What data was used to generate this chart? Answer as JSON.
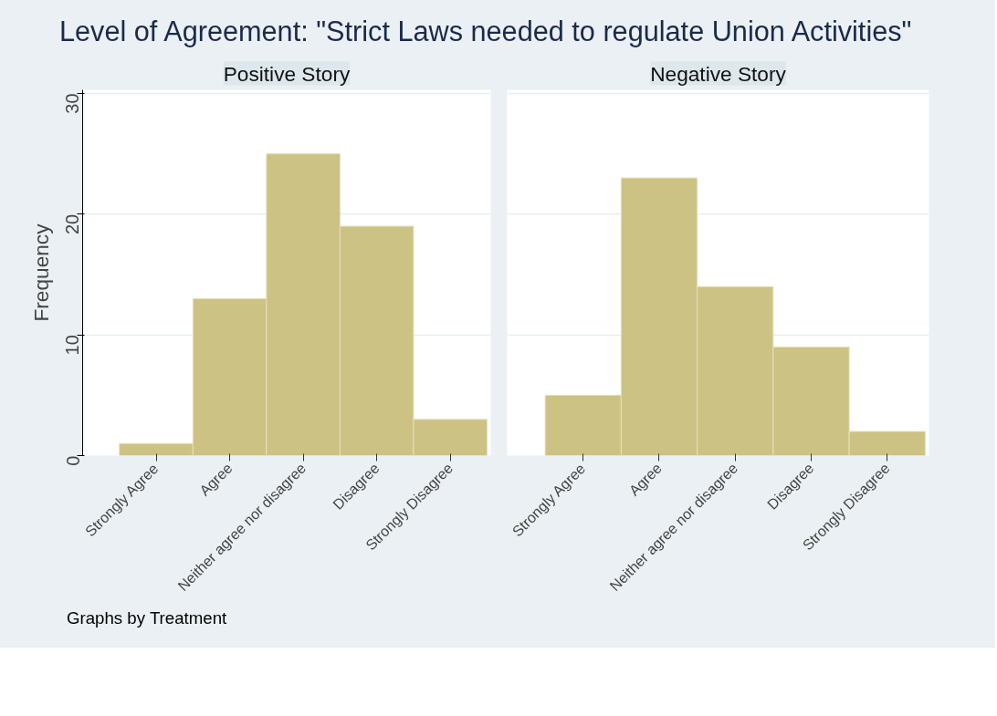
{
  "chart_data": [
    {
      "type": "bar",
      "title": "Level of Agreement: \"Strict Laws needed to regulate Union Activities\"",
      "subtitle": "Positive Story",
      "ylabel": "Frequency",
      "categories": [
        "Strongly Agree",
        "Agree",
        "Neither agree nor disagree",
        "Disagree",
        "Strongly Disagree"
      ],
      "values": [
        1,
        13,
        25,
        19,
        3
      ],
      "color": "#ccc283",
      "ylim": [
        0,
        30.3
      ],
      "yticks": [
        0,
        10,
        20,
        30
      ],
      "grid": "y",
      "annotations": [
        "Graphs by Treatment"
      ]
    },
    {
      "type": "bar",
      "subtitle": "Negative Story",
      "categories": [
        "Strongly Agree",
        "Agree",
        "Neither agree nor disagree",
        "Disagree",
        "Strongly Disagree"
      ],
      "values": [
        5,
        23,
        14,
        9,
        2
      ],
      "color": "#ccc283",
      "ylim": [
        0,
        30.3
      ],
      "yticks": [
        0,
        10,
        20,
        30
      ],
      "grid": "y",
      "tick_labels": "x"
    }
  ]
}
